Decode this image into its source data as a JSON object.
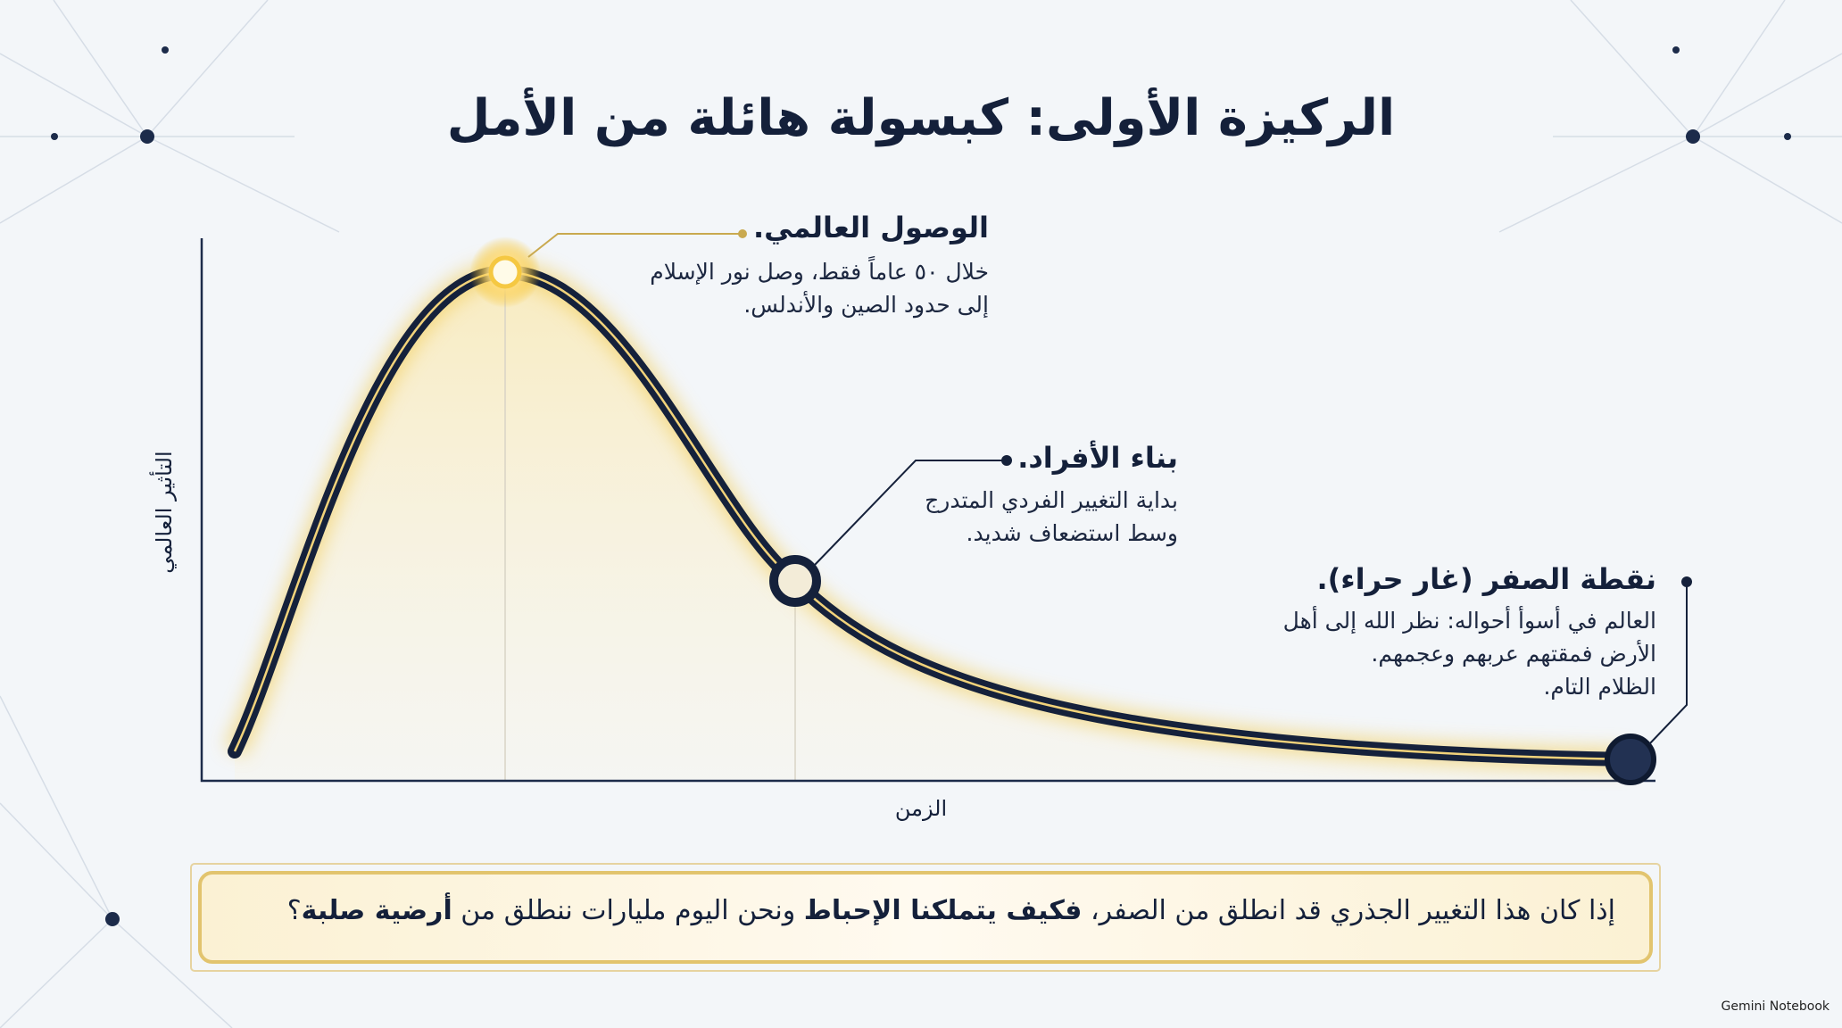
{
  "title": "الركيزة الأولى: كبسولة هائلة من الأمل",
  "axes": {
    "x_label": "الزمن",
    "y_label": "التأثير العالمي"
  },
  "annotations": [
    {
      "heading": "الوصول العالمي.",
      "lines": [
        "خلال ٥٠ عاماً فقط، وصل نور الإسلام",
        "إلى حدود الصين والأندلس."
      ]
    },
    {
      "heading": "بناء الأفراد.",
      "lines": [
        "بداية التغيير الفردي المتدرج",
        "وسط استضعاف شديد."
      ]
    },
    {
      "heading": "نقطة الصفر (غار حراء).",
      "lines": [
        "العالم في أسوأ أحواله: نظر الله إلى أهل",
        "الأرض فمقتهم عربهم وعجمهم.",
        "الظلام التام."
      ]
    }
  ],
  "banner": [
    "إذا كان هذا التغيير الجذري قد انطلق من الصفر، ",
    "فكيف يتملكنا الإحباط",
    " ونحن اليوم مليارات ننطلق من ",
    "أرضية صلبة",
    "؟"
  ],
  "watermark": "Gemini Notebook"
}
